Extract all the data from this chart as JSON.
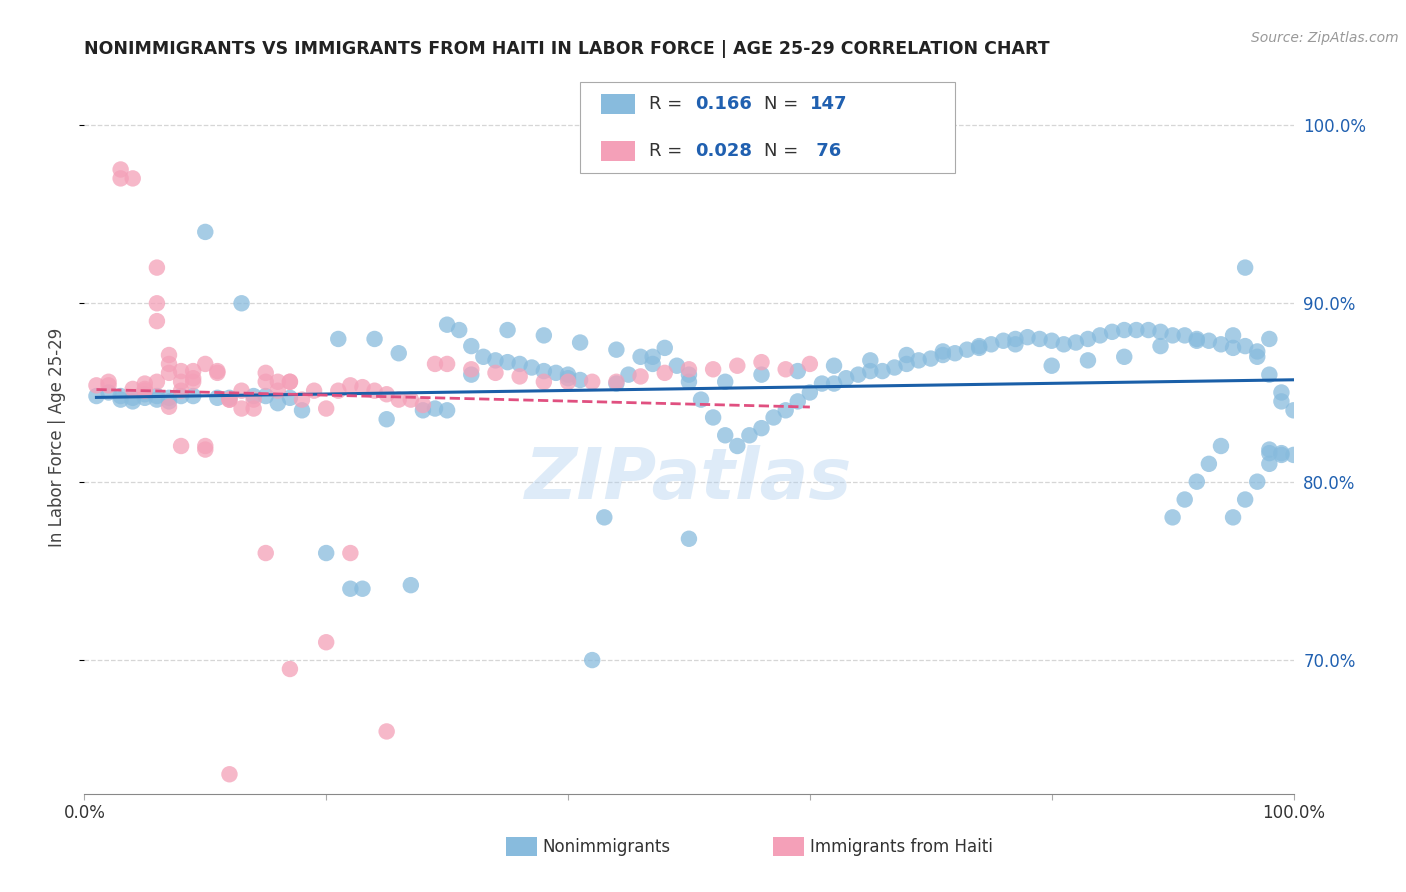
{
  "title": "NONIMMIGRANTS VS IMMIGRANTS FROM HAITI IN LABOR FORCE | AGE 25-29 CORRELATION CHART",
  "source_text": "Source: ZipAtlas.com",
  "ylabel": "In Labor Force | Age 25-29",
  "watermark": "ZIPatlas",
  "xmin": 0.0,
  "xmax": 1.0,
  "ymin": 0.625,
  "ymax": 1.025,
  "yticks": [
    0.7,
    0.8,
    0.9,
    1.0
  ],
  "ytick_labels": [
    "70.0%",
    "80.0%",
    "90.0%",
    "100.0%"
  ],
  "blue_color": "#88bbdd",
  "pink_color": "#f4a0b8",
  "blue_line_color": "#1a5fa8",
  "pink_line_color": "#e05080",
  "legend_R1": "0.166",
  "legend_N1": "147",
  "legend_R2": "0.028",
  "legend_N2": "76",
  "grid_color": "#cccccc",
  "title_color": "#222222",
  "right_tick_color": "#2060b0",
  "nonimmigrants_x": [
    0.01,
    0.02,
    0.03,
    0.03,
    0.04,
    0.04,
    0.05,
    0.05,
    0.06,
    0.06,
    0.07,
    0.07,
    0.08,
    0.09,
    0.1,
    0.11,
    0.12,
    0.13,
    0.14,
    0.15,
    0.16,
    0.17,
    0.18,
    0.2,
    0.22,
    0.23,
    0.25,
    0.27,
    0.28,
    0.3,
    0.3,
    0.31,
    0.32,
    0.33,
    0.34,
    0.35,
    0.36,
    0.37,
    0.38,
    0.39,
    0.4,
    0.4,
    0.41,
    0.42,
    0.43,
    0.44,
    0.45,
    0.46,
    0.47,
    0.48,
    0.49,
    0.5,
    0.5,
    0.51,
    0.52,
    0.53,
    0.54,
    0.55,
    0.56,
    0.57,
    0.58,
    0.59,
    0.6,
    0.61,
    0.62,
    0.63,
    0.64,
    0.65,
    0.66,
    0.67,
    0.68,
    0.69,
    0.7,
    0.71,
    0.72,
    0.73,
    0.74,
    0.75,
    0.76,
    0.77,
    0.78,
    0.79,
    0.8,
    0.81,
    0.82,
    0.83,
    0.84,
    0.85,
    0.86,
    0.87,
    0.88,
    0.89,
    0.9,
    0.91,
    0.92,
    0.93,
    0.94,
    0.95,
    0.96,
    0.97,
    0.98,
    0.98,
    0.99,
    0.99,
    1.0,
    0.21,
    0.24,
    0.26,
    0.29,
    0.32,
    0.35,
    0.38,
    0.41,
    0.44,
    0.47,
    0.5,
    0.53,
    0.56,
    0.59,
    0.62,
    0.65,
    0.68,
    0.71,
    0.74,
    0.77,
    0.8,
    0.83,
    0.86,
    0.89,
    0.92,
    0.95,
    0.98,
    0.96,
    0.97,
    0.98,
    0.99,
    1.0,
    0.99,
    0.98,
    0.97,
    0.96,
    0.95,
    0.94,
    0.93,
    0.92,
    0.91,
    0.9
  ],
  "nonimmigrants_y": [
    0.848,
    0.85,
    0.846,
    0.848,
    0.845,
    0.847,
    0.847,
    0.849,
    0.848,
    0.846,
    0.845,
    0.847,
    0.848,
    0.848,
    0.94,
    0.847,
    0.847,
    0.9,
    0.848,
    0.848,
    0.844,
    0.847,
    0.84,
    0.76,
    0.74,
    0.74,
    0.835,
    0.742,
    0.84,
    0.888,
    0.84,
    0.885,
    0.876,
    0.87,
    0.868,
    0.867,
    0.866,
    0.864,
    0.862,
    0.861,
    0.86,
    0.858,
    0.857,
    0.7,
    0.78,
    0.855,
    0.86,
    0.87,
    0.87,
    0.875,
    0.865,
    0.768,
    0.856,
    0.846,
    0.836,
    0.826,
    0.82,
    0.826,
    0.83,
    0.836,
    0.84,
    0.845,
    0.85,
    0.855,
    0.855,
    0.858,
    0.86,
    0.862,
    0.862,
    0.864,
    0.866,
    0.868,
    0.869,
    0.871,
    0.872,
    0.874,
    0.876,
    0.877,
    0.879,
    0.88,
    0.881,
    0.88,
    0.879,
    0.877,
    0.878,
    0.88,
    0.882,
    0.884,
    0.885,
    0.885,
    0.885,
    0.884,
    0.882,
    0.882,
    0.88,
    0.879,
    0.877,
    0.875,
    0.876,
    0.873,
    0.816,
    0.818,
    0.816,
    0.815,
    0.815,
    0.88,
    0.88,
    0.872,
    0.841,
    0.86,
    0.885,
    0.882,
    0.878,
    0.874,
    0.866,
    0.86,
    0.856,
    0.86,
    0.862,
    0.865,
    0.868,
    0.871,
    0.873,
    0.875,
    0.877,
    0.865,
    0.868,
    0.87,
    0.876,
    0.879,
    0.882,
    0.88,
    0.92,
    0.87,
    0.86,
    0.85,
    0.84,
    0.845,
    0.81,
    0.8,
    0.79,
    0.78,
    0.82,
    0.81,
    0.8,
    0.79,
    0.78
  ],
  "immigrants_x": [
    0.01,
    0.02,
    0.02,
    0.03,
    0.03,
    0.04,
    0.04,
    0.05,
    0.05,
    0.05,
    0.06,
    0.06,
    0.06,
    0.06,
    0.07,
    0.07,
    0.07,
    0.07,
    0.08,
    0.08,
    0.08,
    0.09,
    0.09,
    0.09,
    0.1,
    0.1,
    0.1,
    0.11,
    0.11,
    0.12,
    0.12,
    0.13,
    0.13,
    0.14,
    0.14,
    0.15,
    0.15,
    0.16,
    0.16,
    0.17,
    0.17,
    0.18,
    0.19,
    0.2,
    0.21,
    0.22,
    0.23,
    0.24,
    0.25,
    0.26,
    0.27,
    0.28,
    0.29,
    0.3,
    0.32,
    0.34,
    0.36,
    0.38,
    0.4,
    0.42,
    0.44,
    0.46,
    0.48,
    0.5,
    0.52,
    0.54,
    0.56,
    0.58,
    0.6,
    0.15,
    0.2,
    0.25,
    0.08,
    0.22,
    0.17,
    0.12
  ],
  "immigrants_y": [
    0.854,
    0.854,
    0.856,
    0.97,
    0.975,
    0.97,
    0.852,
    0.851,
    0.855,
    0.852,
    0.92,
    0.9,
    0.89,
    0.856,
    0.861,
    0.866,
    0.871,
    0.842,
    0.851,
    0.856,
    0.862,
    0.858,
    0.856,
    0.862,
    0.82,
    0.818,
    0.866,
    0.861,
    0.862,
    0.846,
    0.846,
    0.841,
    0.851,
    0.841,
    0.846,
    0.856,
    0.861,
    0.851,
    0.856,
    0.856,
    0.856,
    0.846,
    0.851,
    0.841,
    0.851,
    0.854,
    0.853,
    0.851,
    0.849,
    0.846,
    0.846,
    0.843,
    0.866,
    0.866,
    0.863,
    0.861,
    0.859,
    0.856,
    0.856,
    0.856,
    0.856,
    0.859,
    0.861,
    0.863,
    0.863,
    0.865,
    0.867,
    0.863,
    0.866,
    0.76,
    0.71,
    0.66,
    0.82,
    0.76,
    0.695,
    0.636
  ]
}
